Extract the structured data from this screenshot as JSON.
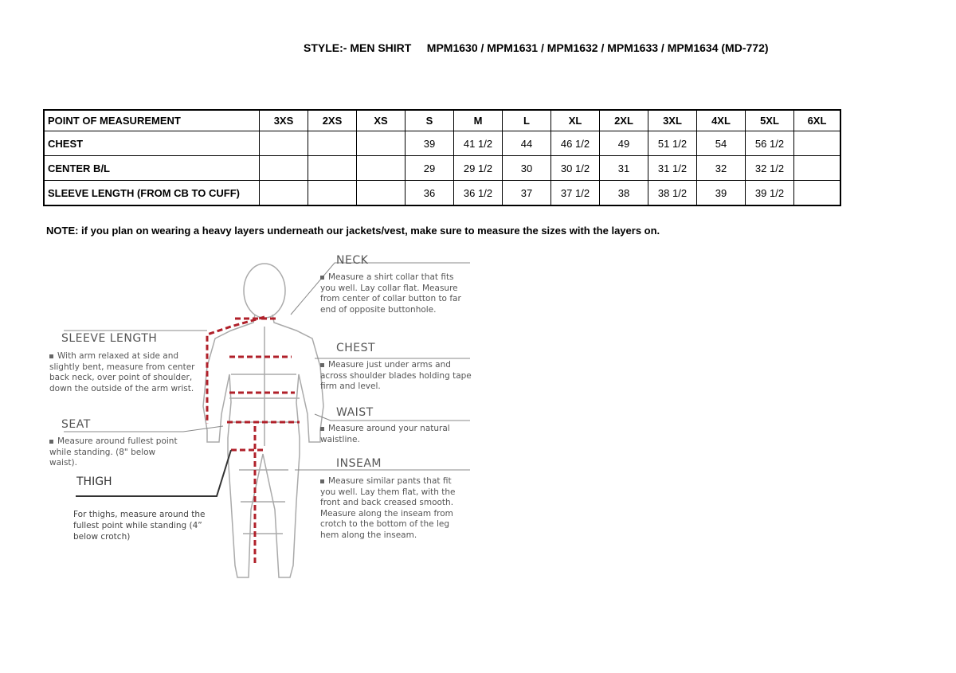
{
  "header": {
    "style_label": "STYLE:- MEN SHIRT",
    "style_codes": "MPM1630 / MPM1631 / MPM1632 / MPM1633 / MPM1634 (MD-772)"
  },
  "table": {
    "headers": [
      "POINT OF MEASUREMENT",
      "3XS",
      "2XS",
      "XS",
      "S",
      "M",
      "L",
      "XL",
      "2XL",
      "3XL",
      "4XL",
      "5XL",
      "6XL"
    ],
    "rows": [
      [
        "CHEST",
        "",
        "",
        "",
        "39",
        "41 1/2",
        "44",
        "46 1/2",
        "49",
        "51 1/2",
        "54",
        "56 1/2",
        ""
      ],
      [
        "CENTER B/L",
        "",
        "",
        "",
        "29",
        "29 1/2",
        "30",
        "30 1/2",
        "31",
        "31 1/2",
        "32",
        "32 1/2",
        ""
      ],
      [
        "SLEEVE LENGTH (FROM CB TO CUFF)",
        "",
        "",
        "",
        "36",
        "36 1/2",
        "37",
        "37 1/2",
        "38",
        "38 1/2",
        "39",
        "39 1/2",
        ""
      ]
    ]
  },
  "note": "NOTE: if you plan on wearing a heavy layers underneath our jackets/vest, make sure to measure the sizes with the layers on.",
  "guide": {
    "neck": {
      "title": "NECK",
      "text": "Measure a shirt collar that fits you well. Lay collar flat. Measure from center of collar button to far end of opposite buttonhole."
    },
    "chest": {
      "title": "CHEST",
      "text": "Measure just under arms and across shoulder blades holding tape firm and level."
    },
    "waist": {
      "title": "WAIST",
      "text": "Measure around your natural waistline."
    },
    "inseam": {
      "title": "INSEAM",
      "text": "Measure similar pants that fit you well. Lay them flat, with the front and back creased smooth. Measure along the inseam from crotch to the bottom of the leg hem along the inseam."
    },
    "sleeve": {
      "title": "SLEEVE LENGTH",
      "text": "With arm relaxed at side and slightly bent, measure from center back neck, over point of shoulder, down the outside of the arm wrist."
    },
    "seat": {
      "title": "SEAT",
      "text": "Measure around fullest point while standing. (8\" below waist)."
    },
    "thigh": {
      "title": "THIGH",
      "text": "For thighs, measure around the fullest point while standing (4” below crotch)"
    }
  },
  "colors": {
    "measure_line": "#b0202a",
    "figure_line": "#aaaaaa"
  }
}
